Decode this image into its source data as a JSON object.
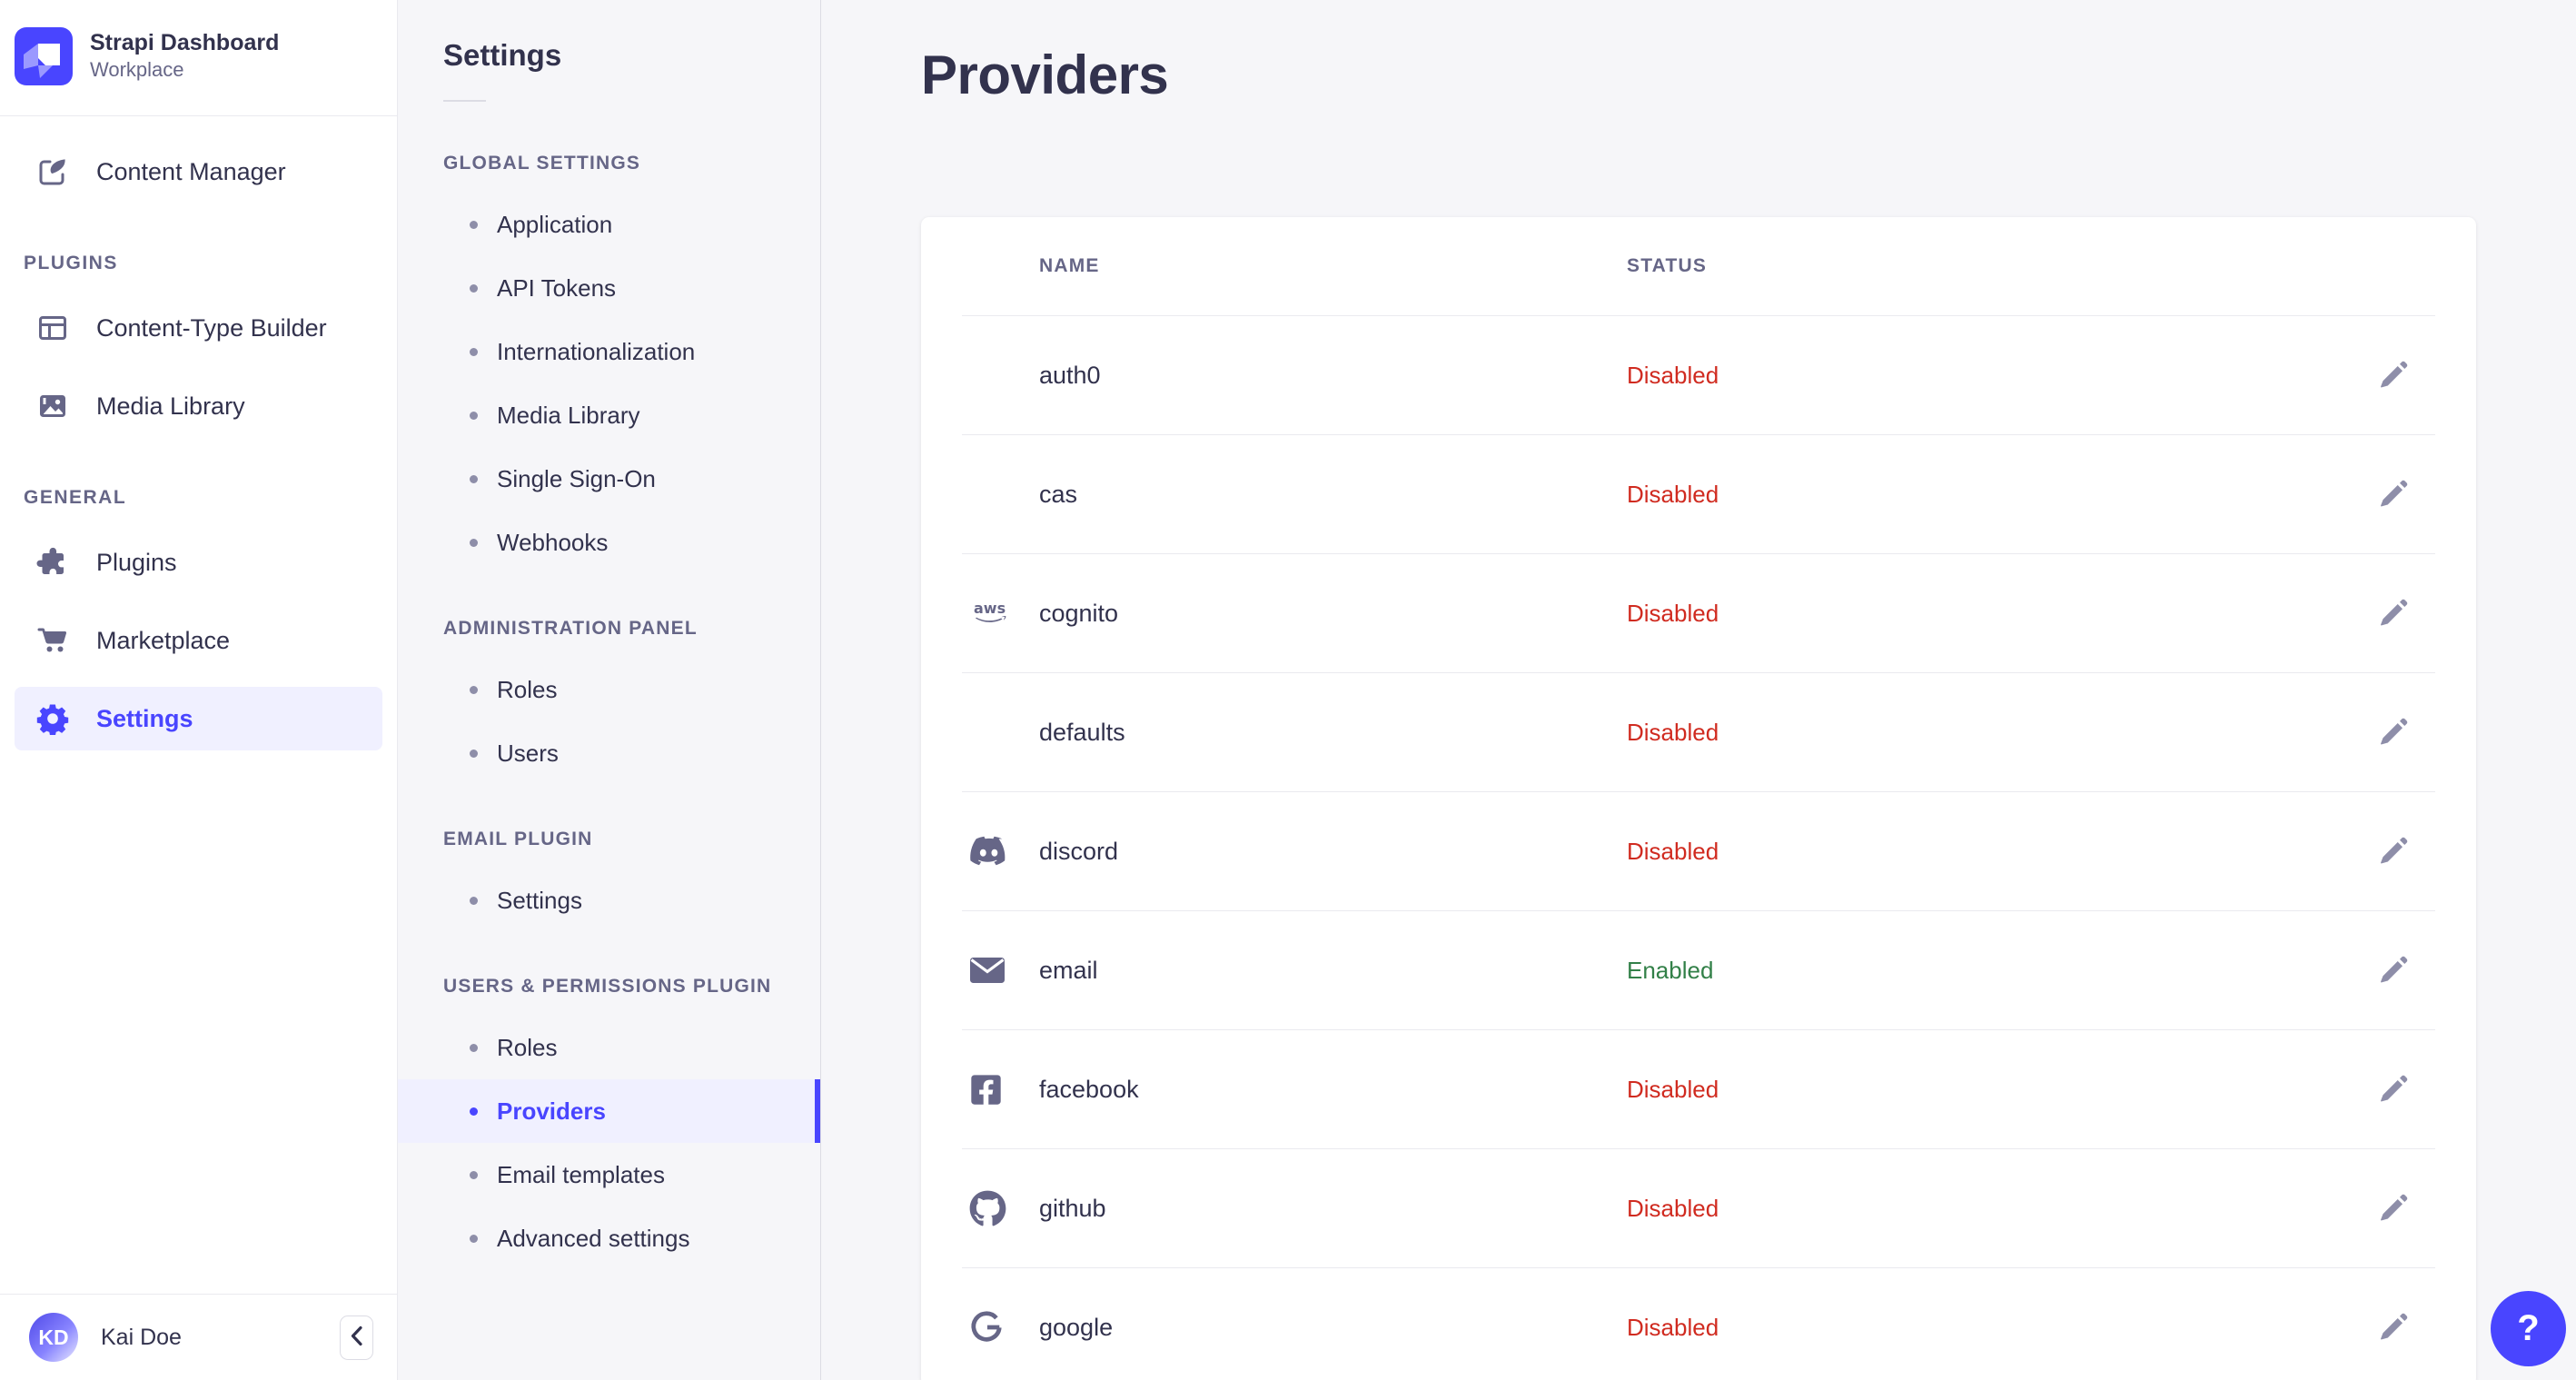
{
  "app": {
    "name": "Strapi Dashboard",
    "workspace": "Workplace"
  },
  "user": {
    "name": "Kai Doe",
    "initials": "KD"
  },
  "main_nav": {
    "primary": [
      {
        "label": "Content Manager",
        "icon": "content-manager-icon",
        "active": false
      }
    ],
    "sections": [
      {
        "label": "PLUGINS",
        "items": [
          {
            "label": "Content-Type Builder",
            "icon": "content-type-builder-icon",
            "active": false
          },
          {
            "label": "Media Library",
            "icon": "media-library-icon",
            "active": false
          }
        ]
      },
      {
        "label": "GENERAL",
        "items": [
          {
            "label": "Plugins",
            "icon": "plugins-icon",
            "active": false
          },
          {
            "label": "Marketplace",
            "icon": "marketplace-icon",
            "active": false
          },
          {
            "label": "Settings",
            "icon": "settings-icon",
            "active": true
          }
        ]
      }
    ]
  },
  "settings_nav": {
    "title": "Settings",
    "sections": [
      {
        "label": "GLOBAL SETTINGS",
        "items": [
          {
            "label": "Application",
            "active": false
          },
          {
            "label": "API Tokens",
            "active": false
          },
          {
            "label": "Internationalization",
            "active": false
          },
          {
            "label": "Media Library",
            "active": false
          },
          {
            "label": "Single Sign-On",
            "active": false
          },
          {
            "label": "Webhooks",
            "active": false
          }
        ]
      },
      {
        "label": "ADMINISTRATION PANEL",
        "items": [
          {
            "label": "Roles",
            "active": false
          },
          {
            "label": "Users",
            "active": false
          }
        ]
      },
      {
        "label": "EMAIL PLUGIN",
        "items": [
          {
            "label": "Settings",
            "active": false
          }
        ]
      },
      {
        "label": "USERS & PERMISSIONS PLUGIN",
        "items": [
          {
            "label": "Roles",
            "active": false
          },
          {
            "label": "Providers",
            "active": true
          },
          {
            "label": "Email templates",
            "active": false
          },
          {
            "label": "Advanced settings",
            "active": false
          }
        ]
      }
    ]
  },
  "page": {
    "title": "Providers"
  },
  "table": {
    "columns": [
      "NAME",
      "STATUS"
    ],
    "rows": [
      {
        "name": "auth0",
        "icon": null,
        "status": "Disabled"
      },
      {
        "name": "cas",
        "icon": null,
        "status": "Disabled"
      },
      {
        "name": "cognito",
        "icon": "aws-icon",
        "status": "Disabled"
      },
      {
        "name": "defaults",
        "icon": null,
        "status": "Disabled"
      },
      {
        "name": "discord",
        "icon": "discord-icon",
        "status": "Disabled"
      },
      {
        "name": "email",
        "icon": "envelope-icon",
        "status": "Enabled"
      },
      {
        "name": "facebook",
        "icon": "facebook-icon",
        "status": "Disabled"
      },
      {
        "name": "github",
        "icon": "github-icon",
        "status": "Disabled"
      },
      {
        "name": "google",
        "icon": "google-icon",
        "status": "Disabled"
      }
    ]
  },
  "help": {
    "label": "?"
  },
  "colors": {
    "primary": "#4945ff",
    "primary_light": "#f0f0ff",
    "danger": "#d02b20",
    "success": "#328048",
    "text": "#32324d",
    "muted": "#666687",
    "subtle": "#8e8ea9",
    "border": "#eaeaef",
    "background": "#f6f6f9"
  }
}
